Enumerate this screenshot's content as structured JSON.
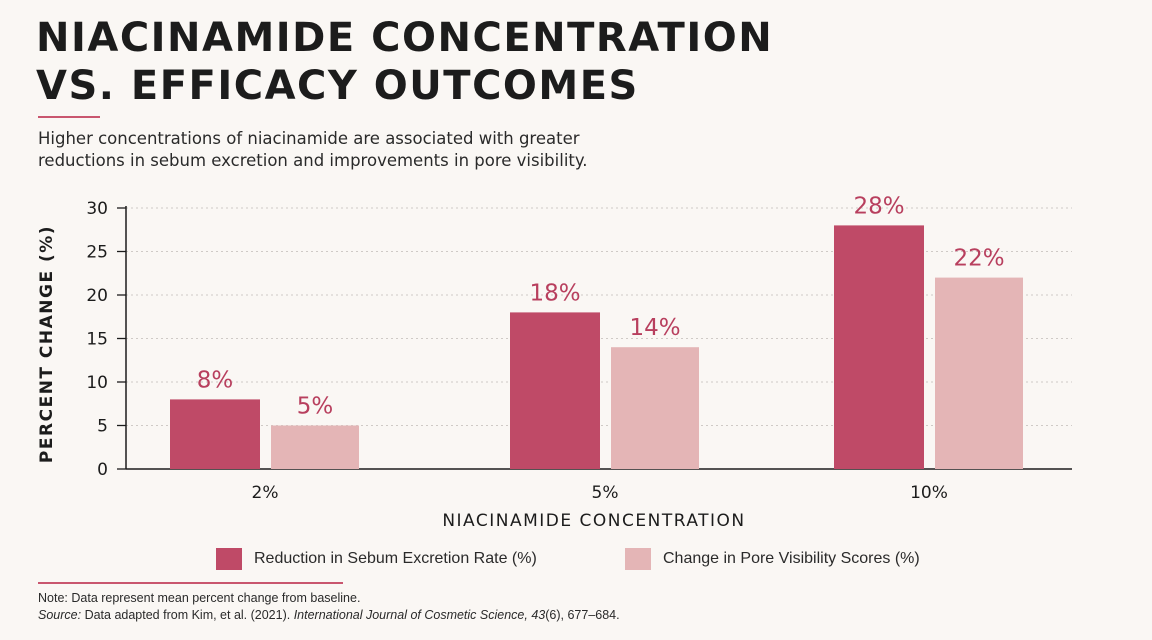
{
  "header": {
    "title_line1": "NIACINAMIDE CONCENTRATION",
    "title_line2": "VS. EFFICACY OUTCOMES",
    "subtitle_line1": "Higher concentrations of niacinamide are associated with greater",
    "subtitle_line2": "reductions in sebum excretion and improvements in pore visibility."
  },
  "chart_data": {
    "type": "bar",
    "categories": [
      "2%",
      "5%",
      "10%"
    ],
    "series": [
      {
        "name": "Reduction in Sebum Excretion Rate (%)",
        "values": [
          8,
          18,
          28
        ],
        "labels": [
          "8%",
          "18%",
          "28%"
        ],
        "color": "#bf4a67"
      },
      {
        "name": "Change in Pore Visibility Scores (%)",
        "values": [
          5,
          14,
          22
        ],
        "labels": [
          "5%",
          "14%",
          "22%"
        ],
        "color": "#e4b5b6"
      }
    ],
    "xlabel": "NIACINAMIDE CONCENTRATION",
    "ylabel": "PERCENT CHANGE (%)",
    "ylim": [
      0,
      30
    ],
    "yticks": [
      0,
      5,
      10,
      15,
      20,
      25,
      30
    ],
    "grid": true,
    "legend_position": "bottom",
    "label_color": "#b83f5e"
  },
  "notes": {
    "note_label": "Note:",
    "note_text": " Data represent mean percent change from baseline.",
    "source_label": "Source:",
    "source_text": " Data adapted from Kim, et al. (2021). ",
    "journal": "International Journal of Cosmetic Science, 43",
    "issue_pages": "(6), 677–684."
  }
}
